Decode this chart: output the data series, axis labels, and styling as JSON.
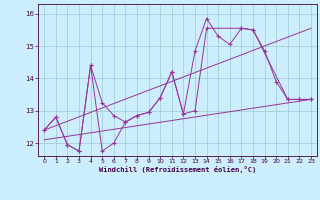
{
  "xlabel": "Windchill (Refroidissement éolien,°C)",
  "bg_color": "#cceeff",
  "line_color": "#993399",
  "grid_color": "#99cccc",
  "xlim": [
    -0.5,
    23.5
  ],
  "ylim": [
    11.6,
    16.3
  ],
  "yticks": [
    12,
    13,
    14,
    15,
    16
  ],
  "xticks": [
    0,
    1,
    2,
    3,
    4,
    5,
    6,
    7,
    8,
    9,
    10,
    11,
    12,
    13,
    14,
    15,
    16,
    17,
    18,
    19,
    20,
    21,
    22,
    23
  ],
  "line1_x": [
    0,
    1,
    2,
    3,
    4,
    5,
    6,
    7,
    8,
    9,
    10,
    11,
    12,
    13,
    14,
    15,
    16,
    17,
    18,
    19,
    20,
    21,
    22,
    23
  ],
  "line1_y": [
    12.4,
    12.8,
    11.95,
    11.75,
    14.4,
    13.25,
    12.85,
    12.65,
    12.85,
    12.95,
    13.4,
    14.2,
    12.9,
    14.85,
    15.85,
    15.3,
    15.05,
    15.55,
    15.5,
    14.85,
    13.9,
    13.35,
    13.35,
    13.35
  ],
  "line2_x": [
    0,
    1,
    2,
    3,
    4,
    5,
    6,
    7,
    8,
    9,
    10,
    11,
    12,
    13,
    14,
    17,
    18,
    21,
    22,
    23
  ],
  "line2_y": [
    12.4,
    12.8,
    11.95,
    11.75,
    14.4,
    11.75,
    12.0,
    12.65,
    12.85,
    12.95,
    13.4,
    14.2,
    12.9,
    13.0,
    15.55,
    15.55,
    15.5,
    13.35,
    13.35,
    13.35
  ],
  "line3_x": [
    0,
    23
  ],
  "line3_y": [
    12.1,
    13.35
  ],
  "line4_x": [
    0,
    23
  ],
  "line4_y": [
    12.4,
    15.55
  ]
}
